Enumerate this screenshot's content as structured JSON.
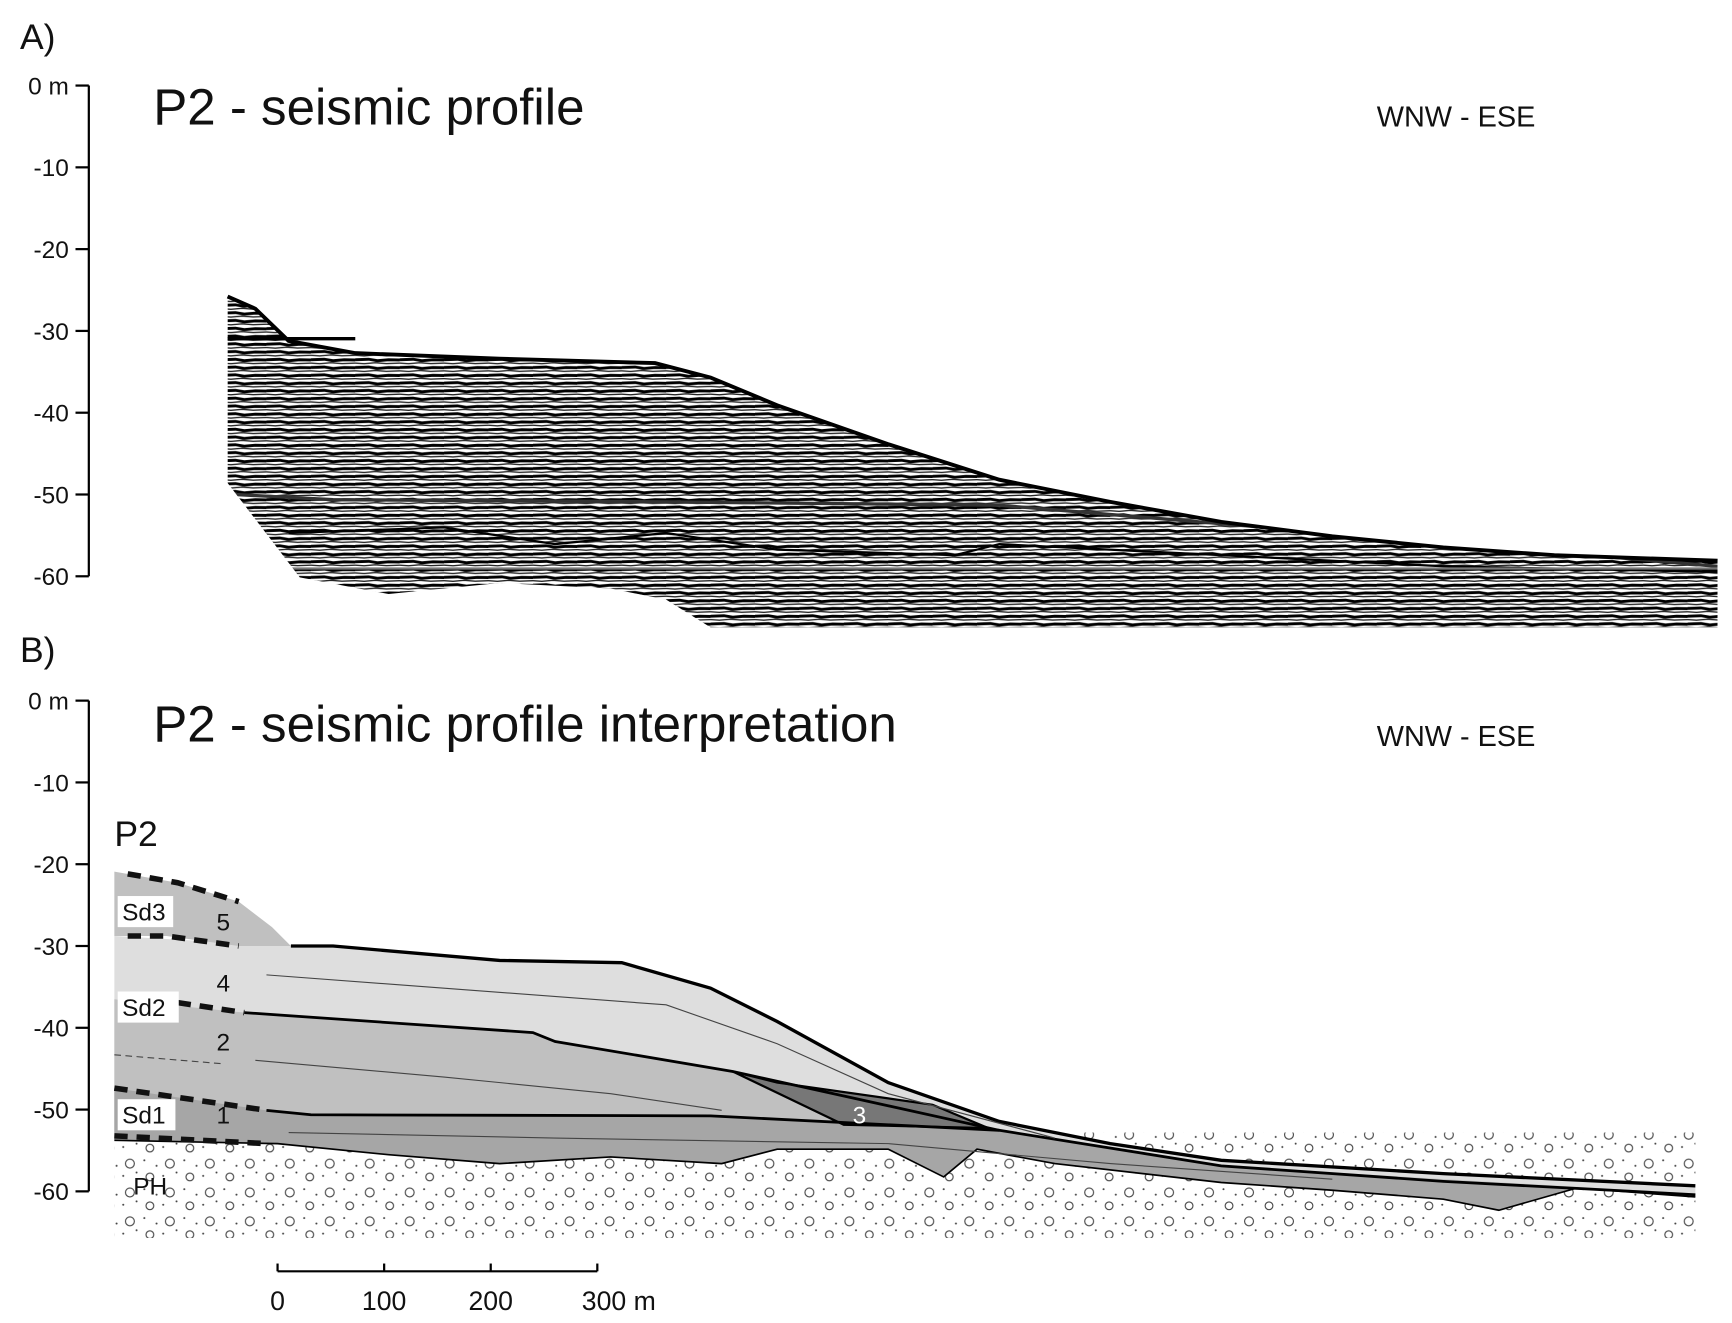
{
  "panel_a": {
    "label": "A)",
    "title": "P2 - seismic profile",
    "direction": "WNW - ESE",
    "depth_ticks": [
      "0 m",
      "-10",
      "-20",
      "-30",
      "-40",
      "-50",
      "-60"
    ]
  },
  "panel_b": {
    "label": "B)",
    "title": "P2 - seismic profile interpretation",
    "direction": "WNW - ESE",
    "depth_ticks": [
      "0 m",
      "-10",
      "-20",
      "-30",
      "-40",
      "-50",
      "-60"
    ],
    "profile_label": "P2",
    "units": {
      "sd3": "Sd3",
      "u5": "5",
      "u4": "4",
      "sd2": "Sd2",
      "u2": "2",
      "sd1": "Sd1",
      "u1": "1",
      "u3": "3",
      "ph": "PH"
    }
  },
  "scale_bar": {
    "labels": [
      "0",
      "100",
      "200",
      "300 m"
    ]
  }
}
